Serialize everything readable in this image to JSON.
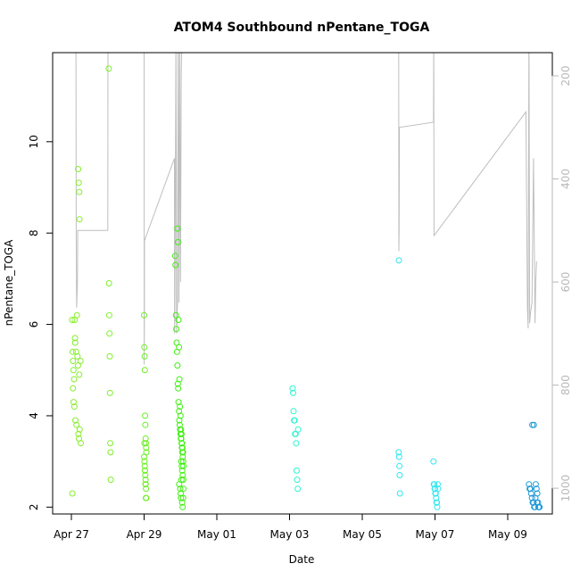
{
  "chart_data": {
    "type": "scatter",
    "title": "ATOM4 Southbound nPentane_TOGA",
    "xlabel": "Date",
    "ylabel": "nPentane_TOGA",
    "x_ticks": [
      "Apr 27",
      "Apr 29",
      "May 01",
      "May 03",
      "May 05",
      "May 07",
      "May 09"
    ],
    "y_ticks": [
      "2",
      "4",
      "6",
      "8",
      "10"
    ],
    "right_axis_ticks": [
      "200",
      "400",
      "600",
      "800",
      "1000"
    ],
    "ylim": [
      1.85,
      11.95
    ],
    "right_ylim": [
      1050,
      155
    ],
    "grid": false,
    "right_axis_color": "#b8b8b8",
    "line_color": "#bebebe",
    "point_series": [
      {
        "color": "#86ee2c",
        "x": [
          "2018-04-27T00:30",
          "2018-04-27T00:50",
          "2018-04-27T01:05",
          "2018-04-27T01:20",
          "2018-04-27T01:45",
          "2018-04-27T02:10",
          "2018-04-27T02:30",
          "2018-04-27T03:10",
          "2018-04-27T04:00",
          "2018-04-27T04:20",
          "2018-04-27T05:10",
          "2018-04-27T06:00",
          "2018-04-27T02:20",
          "2018-04-27T03:40"
        ],
        "y": [
          6.1,
          5.4,
          5.2,
          5.0,
          4.8,
          6.1,
          5.6,
          5.4,
          5.3,
          5.1,
          4.9,
          5.2,
          5.7,
          6.2
        ]
      },
      {
        "color": "#86ee2c",
        "x": [
          "2018-04-27T01:00",
          "2018-04-27T01:30",
          "2018-04-27T02:00",
          "2018-04-27T02:40",
          "2018-04-27T03:20",
          "2018-04-27T04:40",
          "2018-04-27T05:00",
          "2018-04-27T05:30",
          "2018-04-27T06:10",
          "2018-04-27T00:40"
        ],
        "y": [
          4.6,
          4.3,
          4.2,
          3.9,
          3.8,
          3.6,
          3.5,
          3.7,
          3.4,
          2.3
        ]
      },
      {
        "color": "#86ee2c",
        "x": [
          "2018-04-27T04:30",
          "2018-04-27T04:50",
          "2018-04-27T05:10",
          "2018-04-27T05:20"
        ],
        "y": [
          9.4,
          9.1,
          8.9,
          8.3
        ]
      },
      {
        "color": "#7ff02a",
        "x": [
          "2018-04-28T00:40",
          "2018-04-28T00:50",
          "2018-04-28T01:00",
          "2018-04-28T01:10",
          "2018-04-28T01:20",
          "2018-04-28T01:30",
          "2018-04-28T01:40",
          "2018-04-28T01:50",
          "2018-04-28T02:00"
        ],
        "y": [
          11.6,
          6.9,
          6.2,
          5.8,
          5.3,
          4.5,
          3.4,
          3.2,
          2.6
        ]
      },
      {
        "color": "#6aef22",
        "x": [
          "2018-04-29T00:00",
          "2018-04-29T00:10",
          "2018-04-29T00:20",
          "2018-04-29T00:30",
          "2018-04-29T00:40",
          "2018-04-29T00:50",
          "2018-04-29T01:00",
          "2018-04-29T01:10",
          "2018-04-29T01:20",
          "2018-04-29T01:30",
          "2018-04-29T00:05",
          "2018-04-29T00:15",
          "2018-04-29T00:25",
          "2018-04-29T00:35",
          "2018-04-29T00:45",
          "2018-04-29T00:55",
          "2018-04-29T01:05",
          "2018-04-29T01:15",
          "2018-04-29T01:25",
          "2018-04-29T00:12",
          "2018-04-29T00:32",
          "2018-04-29T00:52",
          "2018-04-29T01:12"
        ],
        "y": [
          6.2,
          5.5,
          5.3,
          5.0,
          4.0,
          3.8,
          3.5,
          3.4,
          3.3,
          3.2,
          3.1,
          3.0,
          2.9,
          2.8,
          2.7,
          2.6,
          2.5,
          2.4,
          2.2,
          3.4,
          2.8,
          2.5,
          2.2
        ]
      },
      {
        "color": "#3fef10",
        "x": [
          "2018-04-29T20:30",
          "2018-04-29T20:45",
          "2018-04-29T21:00",
          "2018-04-29T21:15",
          "2018-04-29T21:30",
          "2018-04-29T21:45",
          "2018-04-29T22:00",
          "2018-04-29T22:15",
          "2018-04-29T22:30",
          "2018-04-29T22:45",
          "2018-04-29T23:00",
          "2018-04-29T23:15",
          "2018-04-29T23:30",
          "2018-04-29T23:45",
          "2018-04-30T00:00",
          "2018-04-30T00:15",
          "2018-04-30T00:30",
          "2018-04-30T00:45",
          "2018-04-30T01:00",
          "2018-04-30T01:15",
          "2018-04-30T01:30",
          "2018-04-30T01:45",
          "2018-04-30T02:00"
        ],
        "y": [
          7.5,
          7.3,
          6.2,
          5.9,
          5.6,
          5.4,
          5.1,
          4.7,
          4.6,
          4.3,
          4.1,
          3.9,
          3.8,
          3.7,
          3.6,
          3.5,
          3.5,
          3.4,
          3.3,
          3.2,
          3.1,
          3.0,
          2.9
        ]
      },
      {
        "color": "#3fef10",
        "x": [
          "2018-04-29T22:00",
          "2018-04-29T22:20",
          "2018-04-29T22:40",
          "2018-04-29T23:00",
          "2018-04-29T23:20",
          "2018-04-29T23:40",
          "2018-04-30T00:00",
          "2018-04-30T00:20",
          "2018-04-30T00:40",
          "2018-04-30T01:00",
          "2018-04-30T01:20",
          "2018-04-30T01:40",
          "2018-04-30T00:30",
          "2018-04-30T00:50",
          "2018-04-30T01:10",
          "2018-04-30T01:30",
          "2018-04-30T01:50",
          "2018-04-29T23:10",
          "2018-04-29T23:50",
          "2018-04-30T00:10",
          "2018-04-30T00:20",
          "2018-04-30T01:05",
          "2018-04-30T01:25",
          "2018-04-30T01:45",
          "2018-04-30T01:55",
          "2018-04-30T00:40"
        ],
        "y": [
          8.1,
          7.8,
          6.1,
          5.5,
          4.8,
          4.2,
          4.0,
          3.7,
          3.6,
          3.4,
          3.3,
          3.2,
          3.0,
          2.9,
          2.8,
          2.7,
          2.6,
          2.5,
          2.4,
          2.3,
          2.2,
          2.1,
          2.0,
          2.2,
          2.4,
          2.6
        ]
      },
      {
        "color": "#29f5d0",
        "x": [
          "2018-05-03T02:00",
          "2018-05-03T02:20",
          "2018-05-03T02:40",
          "2018-05-03T03:00",
          "2018-05-03T03:20",
          "2018-05-03T03:40",
          "2018-05-03T04:00",
          "2018-05-03T04:20",
          "2018-05-03T04:40",
          "2018-05-03T05:00",
          "2018-05-03T05:20",
          "2018-05-03T05:40"
        ],
        "y": [
          4.6,
          4.5,
          4.1,
          3.9,
          3.9,
          3.6,
          3.6,
          3.4,
          2.8,
          2.6,
          2.4,
          3.7
        ]
      },
      {
        "color": "#2ee6f0",
        "x": [
          "2018-05-06T00:10",
          "2018-05-06T00:00",
          "2018-05-06T00:20",
          "2018-05-06T00:30",
          "2018-05-06T00:40",
          "2018-05-06T00:50"
        ],
        "y": [
          7.4,
          3.2,
          3.1,
          2.9,
          2.7,
          2.3
        ]
      },
      {
        "color": "#2ee6f0",
        "x": [
          "2018-05-06T23:00",
          "2018-05-06T23:15",
          "2018-05-06T23:30",
          "2018-05-06T23:45",
          "2018-05-07T00:00",
          "2018-05-07T00:15",
          "2018-05-07T00:30",
          "2018-05-07T00:45",
          "2018-05-07T01:00",
          "2018-05-07T01:15",
          "2018-05-07T01:30",
          "2018-05-07T01:45",
          "2018-05-07T02:00"
        ],
        "y": [
          3.0,
          2.5,
          2.5,
          2.4,
          2.4,
          2.3,
          2.3,
          2.2,
          2.1,
          2.1,
          2.0,
          2.5,
          2.4
        ]
      },
      {
        "color": "#1e9ad8",
        "x": [
          "2018-05-09T14:00",
          "2018-05-09T14:30",
          "2018-05-09T15:00",
          "2018-05-09T15:30",
          "2018-05-09T16:00",
          "2018-05-09T16:30",
          "2018-05-09T17:00",
          "2018-05-09T17:30",
          "2018-05-09T18:00",
          "2018-05-09T18:30",
          "2018-05-09T19:00",
          "2018-05-09T19:30",
          "2018-05-09T20:00",
          "2018-05-09T20:30",
          "2018-05-09T21:00",
          "2018-05-09T16:15",
          "2018-05-09T17:15",
          "2018-05-09T18:15",
          "2018-05-09T19:15",
          "2018-05-09T20:15"
        ],
        "y": [
          2.5,
          2.4,
          2.4,
          2.3,
          2.2,
          2.1,
          2.1,
          2.0,
          2.0,
          2.5,
          2.4,
          2.3,
          2.1,
          2.0,
          2.0,
          3.8,
          3.8,
          2.2,
          2.1,
          2.0
        ]
      }
    ],
    "line_series": {
      "right_axis_values": true,
      "x": [
        "2018-04-27T00:00",
        "2018-04-27T03:00",
        "2018-04-27T03:10",
        "2018-04-27T03:20",
        "2018-04-27T03:30",
        "2018-04-27T04:00",
        "2018-04-27T04:10",
        "2018-04-28T00:00",
        "2018-04-28T00:10",
        "2018-04-28T01:00",
        "2018-04-29T00:00",
        "2018-04-29T00:05",
        "2018-04-29T00:10",
        "2018-04-29T00:15",
        "2018-04-29T20:00",
        "2018-04-29T20:10",
        "2018-04-29T20:20",
        "2018-04-29T21:00",
        "2018-04-29T21:30",
        "2018-04-29T22:00",
        "2018-04-29T22:30",
        "2018-04-29T23:00",
        "2018-04-29T23:30",
        "2018-04-30T00:00",
        "2018-04-30T00:30",
        "2018-04-30T01:00",
        "2018-04-30T02:00",
        "2018-05-02T16:00",
        "2018-05-06T00:00",
        "2018-05-06T00:10",
        "2018-05-06T00:20",
        "2018-05-06T00:30",
        "2018-05-06T23:00",
        "2018-05-06T23:10",
        "2018-05-06T23:20",
        "2018-05-09T12:00",
        "2018-05-09T13:00",
        "2018-05-09T13:30",
        "2018-05-09T14:00",
        "2018-05-09T14:30",
        "2018-05-09T15:00",
        "2018-05-09T16:00",
        "2018-05-09T17:00",
        "2018-05-09T18:00",
        "2018-05-09T18:30",
        "2018-05-09T19:00"
      ],
      "y": [
        120,
        120,
        500,
        600,
        650,
        600,
        500,
        500,
        120,
        120,
        120,
        760,
        680,
        520,
        360,
        700,
        650,
        120,
        700,
        640,
        120,
        640,
        120,
        600,
        200,
        120,
        120,
        120,
        120,
        540,
        500,
        300,
        290,
        120,
        510,
        270,
        650,
        690,
        100,
        680,
        660,
        640,
        360,
        680,
        600,
        560
      ]
    }
  }
}
